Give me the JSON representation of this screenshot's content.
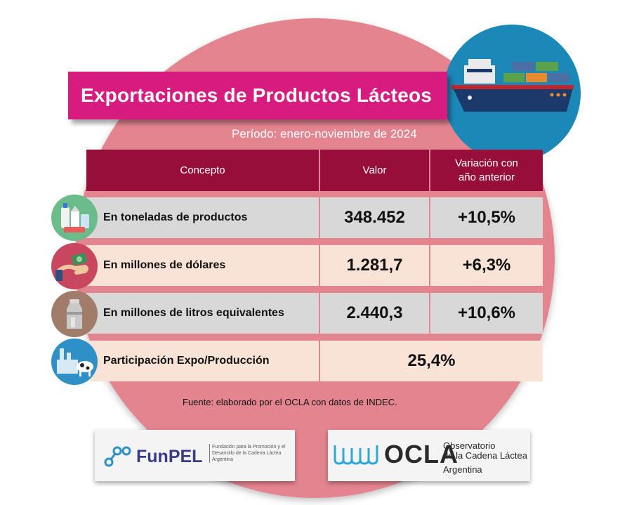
{
  "title": "Exportaciones de Productos Lácteos",
  "period": "Período: enero-noviembre de 2024",
  "table": {
    "headers": {
      "concepto": "Concepto",
      "valor": "Valor",
      "variacion_line1": "Variación con",
      "variacion_line2": "año anterior"
    },
    "rows": [
      {
        "label": "En toneladas de productos",
        "value": "348.452",
        "variation": "+10,5%",
        "icon": "dairy-products-icon"
      },
      {
        "label": "En millones de dólares",
        "value": "1.281,7",
        "variation": "+6,3%",
        "icon": "money-hand-icon"
      },
      {
        "label": "En millones de litros equivalentes",
        "value": "2.440,3",
        "variation": "+10,6%",
        "icon": "milk-can-icon"
      },
      {
        "label": "Participación Expo/Producción",
        "value": "25,4%",
        "icon": "dairy-factory-icon"
      }
    ]
  },
  "source": "Fuente: elaborado por el OCLA con datos de INDEC.",
  "logos": {
    "funpel": {
      "name": "FunPEL",
      "subtitle": "Fundación para la Promoción y el Desarrollo de la Cadena Láctea Argentina"
    },
    "ocla": {
      "name": "OCLA",
      "subtitle_line1": "Observatorio",
      "subtitle_line2": "de la Cadena Láctea",
      "subtitle_line3": "Argentina"
    }
  },
  "colors": {
    "title_bg": "#d81b7e",
    "header_bg": "#970e3b",
    "circle_bg": "#e4848f",
    "row_gray": "#d8d8d8",
    "row_cream": "#f9e3d6"
  }
}
